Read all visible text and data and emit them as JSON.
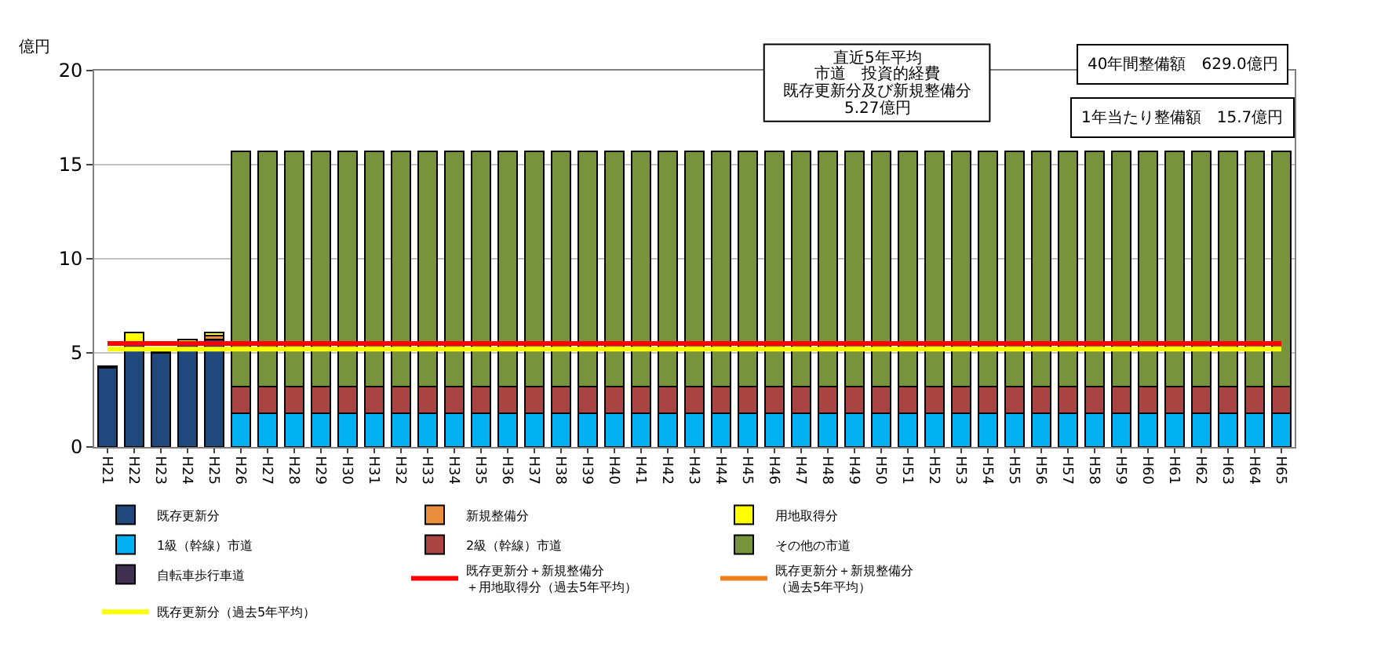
{
  "chart_data": {
    "type": "bar",
    "stacked": true,
    "ylabel": "億円",
    "categories": [
      "H21",
      "H22",
      "H23",
      "H24",
      "H25",
      "H26",
      "H27",
      "H28",
      "H29",
      "H30",
      "H31",
      "H32",
      "H33",
      "H34",
      "H35",
      "H36",
      "H37",
      "H38",
      "H39",
      "H40",
      "H41",
      "H42",
      "H43",
      "H44",
      "H45",
      "H46",
      "H47",
      "H48",
      "H49",
      "H50",
      "H51",
      "H52",
      "H53",
      "H54",
      "H55",
      "H56",
      "H57",
      "H58",
      "H59",
      "H60",
      "H61",
      "H62",
      "H63",
      "H64",
      "H65"
    ],
    "series": [
      {
        "name": "既存更新分",
        "color": "#1f497d",
        "values": [
          4.2,
          5.6,
          5.0,
          5.6,
          5.7,
          null,
          null,
          null,
          null,
          null,
          null,
          null,
          null,
          null,
          null,
          null,
          null,
          null,
          null,
          null,
          null,
          null,
          null,
          null,
          null,
          null,
          null,
          null,
          null,
          null,
          null,
          null,
          null,
          null,
          null,
          null,
          null,
          null,
          null,
          null,
          null,
          null,
          null,
          null,
          null
        ]
      },
      {
        "name": "新規整備分",
        "color": "#e98e3c",
        "values": [
          null,
          null,
          null,
          null,
          0.2,
          null,
          null,
          null,
          null,
          null,
          null,
          null,
          null,
          null,
          null,
          null,
          null,
          null,
          null,
          null,
          null,
          null,
          null,
          null,
          null,
          null,
          null,
          null,
          null,
          null,
          null,
          null,
          null,
          null,
          null,
          null,
          null,
          null,
          null,
          null,
          null,
          null,
          null,
          null,
          null
        ]
      },
      {
        "name": "用地取得分",
        "color": "#ffff00",
        "values": [
          0.1,
          0.5,
          0.1,
          0.1,
          0.2,
          null,
          null,
          null,
          null,
          null,
          null,
          null,
          null,
          null,
          null,
          null,
          null,
          null,
          null,
          null,
          null,
          null,
          null,
          null,
          null,
          null,
          null,
          null,
          null,
          null,
          null,
          null,
          null,
          null,
          null,
          null,
          null,
          null,
          null,
          null,
          null,
          null,
          null,
          null,
          null
        ]
      },
      {
        "name": "1級（幹線）市道",
        "color": "#00b0f0",
        "values": [
          null,
          null,
          null,
          null,
          null,
          1.8,
          1.8,
          1.8,
          1.8,
          1.8,
          1.8,
          1.8,
          1.8,
          1.8,
          1.8,
          1.8,
          1.8,
          1.8,
          1.8,
          1.8,
          1.8,
          1.8,
          1.8,
          1.8,
          1.8,
          1.8,
          1.8,
          1.8,
          1.8,
          1.8,
          1.8,
          1.8,
          1.8,
          1.8,
          1.8,
          1.8,
          1.8,
          1.8,
          1.8,
          1.8,
          1.8,
          1.8,
          1.8,
          1.8,
          1.8
        ]
      },
      {
        "name": "2級（幹線）市道",
        "color": "#a94442",
        "values": [
          null,
          null,
          null,
          null,
          null,
          1.4,
          1.4,
          1.4,
          1.4,
          1.4,
          1.4,
          1.4,
          1.4,
          1.4,
          1.4,
          1.4,
          1.4,
          1.4,
          1.4,
          1.4,
          1.4,
          1.4,
          1.4,
          1.4,
          1.4,
          1.4,
          1.4,
          1.4,
          1.4,
          1.4,
          1.4,
          1.4,
          1.4,
          1.4,
          1.4,
          1.4,
          1.4,
          1.4,
          1.4,
          1.4,
          1.4,
          1.4,
          1.4,
          1.4,
          1.4
        ]
      },
      {
        "name": "その他の市道",
        "color": "#77933c",
        "values": [
          null,
          null,
          null,
          null,
          null,
          12.5,
          12.5,
          12.5,
          12.5,
          12.5,
          12.5,
          12.5,
          12.5,
          12.5,
          12.5,
          12.5,
          12.5,
          12.5,
          12.5,
          12.5,
          12.5,
          12.5,
          12.5,
          12.5,
          12.5,
          12.5,
          12.5,
          12.5,
          12.5,
          12.5,
          12.5,
          12.5,
          12.5,
          12.5,
          12.5,
          12.5,
          12.5,
          12.5,
          12.5,
          12.5,
          12.5,
          12.5,
          12.5,
          12.5,
          12.5
        ]
      },
      {
        "name": "自転車歩行車道",
        "color": "#403152",
        "values": [
          null,
          null,
          null,
          null,
          null,
          null,
          null,
          null,
          null,
          null,
          null,
          null,
          null,
          null,
          null,
          null,
          null,
          null,
          null,
          null,
          null,
          null,
          null,
          null,
          null,
          null,
          null,
          null,
          null,
          null,
          null,
          null,
          null,
          null,
          null,
          null,
          null,
          null,
          null,
          null,
          null,
          null,
          null,
          null,
          null
        ]
      },
      {
        "name": "既存更新分＋新規整備分＋用地取得分（過去5年平均）",
        "type": "line",
        "color": "#ff0000",
        "values": [
          5.5,
          5.5,
          5.5,
          5.5,
          5.5,
          5.5,
          5.5,
          5.5,
          5.5,
          5.5,
          5.5,
          5.5,
          5.5,
          5.5,
          5.5,
          5.5,
          5.5,
          5.5,
          5.5,
          5.5,
          5.5,
          5.5,
          5.5,
          5.5,
          5.5,
          5.5,
          5.5,
          5.5,
          5.5,
          5.5,
          5.5,
          5.5,
          5.5,
          5.5,
          5.5,
          5.5,
          5.5,
          5.5,
          5.5,
          5.5,
          5.5,
          5.5,
          5.5,
          5.5,
          5.5
        ]
      },
      {
        "name": "既存更新分＋新規整備分（過去5年平均）",
        "type": "line",
        "color": "#f07f1e",
        "values": [
          null,
          null,
          null,
          null,
          null,
          null,
          null,
          null,
          null,
          null,
          null,
          null,
          null,
          null,
          null,
          null,
          null,
          null,
          null,
          null,
          null,
          null,
          null,
          null,
          null,
          null,
          null,
          null,
          null,
          null,
          null,
          null,
          null,
          null,
          null,
          null,
          null,
          null,
          null,
          null,
          null,
          null,
          null,
          null,
          null
        ]
      },
      {
        "name": "既存更新分（過去5年平均）",
        "type": "line",
        "color": "#ffff00",
        "values": [
          5.2,
          5.2,
          5.2,
          5.2,
          5.2,
          5.2,
          5.2,
          5.2,
          5.2,
          5.2,
          5.2,
          5.2,
          5.2,
          5.2,
          5.2,
          5.2,
          5.2,
          5.2,
          5.2,
          5.2,
          5.2,
          5.2,
          5.2,
          5.2,
          5.2,
          5.2,
          5.2,
          5.2,
          5.2,
          5.2,
          5.2,
          5.2,
          5.2,
          5.2,
          5.2,
          5.2,
          5.2,
          5.2,
          5.2,
          5.2,
          5.2,
          5.2,
          5.2,
          5.2,
          5.2
        ]
      }
    ],
    "ylim": [
      0,
      20
    ],
    "yticks": [
      0,
      5,
      10,
      15,
      20
    ],
    "grid": "y",
    "legend": "bottom",
    "annotations": [
      "直近5年平均",
      "市道　投資的経費",
      "既存更新分及び新規整備分",
      "5.27億円",
      "40年間整備額　629.0億円",
      "1年当たり整備額　15.7億円"
    ]
  }
}
